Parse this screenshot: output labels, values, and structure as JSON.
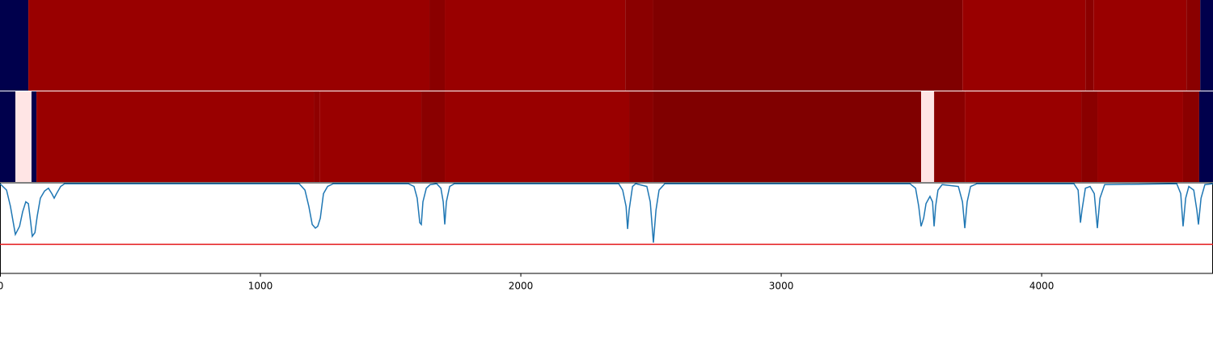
{
  "chart_data": {
    "type": "strips_and_line",
    "xlim": [
      0,
      4658
    ],
    "xticks": [
      0,
      1000,
      2000,
      3000,
      4000
    ],
    "colormap": [
      {
        "value": 0,
        "color": "#00004c"
      },
      {
        "value": 0.25,
        "color": "#0000ff"
      },
      {
        "value": 0.5,
        "color": "#ffffff"
      },
      {
        "value": 0.75,
        "color": "#ff0000"
      },
      {
        "value": 1,
        "color": "#800000"
      }
    ],
    "strips": [
      {
        "segments": [
          {
            "start": 0,
            "end": 109,
            "value": 0
          },
          {
            "start": 109,
            "end": 1649,
            "value": 0.95
          },
          {
            "start": 1649,
            "end": 1708,
            "value": 0.98
          },
          {
            "start": 1708,
            "end": 2401,
            "value": 0.95
          },
          {
            "start": 2401,
            "end": 2509,
            "value": 0.98
          },
          {
            "start": 2509,
            "end": 3696,
            "value": 1
          },
          {
            "start": 3696,
            "end": 4168,
            "value": 0.95
          },
          {
            "start": 4168,
            "end": 4199,
            "value": 0.98
          },
          {
            "start": 4199,
            "end": 4556,
            "value": 0.95
          },
          {
            "start": 4556,
            "end": 4609,
            "value": 0.98
          },
          {
            "start": 4609,
            "end": 4658,
            "value": 0
          }
        ]
      },
      {
        "segments": [
          {
            "start": 0,
            "end": 59,
            "value": 0
          },
          {
            "start": 59,
            "end": 121,
            "value": 0.525
          },
          {
            "start": 121,
            "end": 140,
            "value": 0
          },
          {
            "start": 140,
            "end": 1205,
            "value": 0.95
          },
          {
            "start": 1205,
            "end": 1227,
            "value": 0.97
          },
          {
            "start": 1227,
            "end": 1618,
            "value": 0.95
          },
          {
            "start": 1618,
            "end": 1708,
            "value": 0.98
          },
          {
            "start": 1708,
            "end": 2416,
            "value": 0.95
          },
          {
            "start": 2416,
            "end": 2509,
            "value": 0.98
          },
          {
            "start": 2509,
            "end": 3537,
            "value": 1
          },
          {
            "start": 3537,
            "end": 3587,
            "value": 0.525
          },
          {
            "start": 3587,
            "end": 3705,
            "value": 0.98
          },
          {
            "start": 3705,
            "end": 4152,
            "value": 0.95
          },
          {
            "start": 4152,
            "end": 4214,
            "value": 0.98
          },
          {
            "start": 4214,
            "end": 4543,
            "value": 0.95
          },
          {
            "start": 4543,
            "end": 4605,
            "value": 0.98
          },
          {
            "start": 4605,
            "end": 4658,
            "value": 0
          }
        ]
      }
    ],
    "ylim": [
      0,
      1
    ],
    "threshold": 0.32,
    "threshold_color": "#e41a1c",
    "series": [
      {
        "color": "#1f77b4",
        "x": [
          0,
          25,
          40,
          59,
          75,
          87,
          99,
          109,
          118,
          124,
          134,
          143,
          155,
          171,
          186,
          199,
          208,
          217,
          233,
          248,
          621,
          1149,
          1171,
          1186,
          1199,
          1211,
          1220,
          1230,
          1242,
          1258,
          1280,
          1568,
          1590,
          1602,
          1612,
          1618,
          1624,
          1637,
          1652,
          1677,
          1693,
          1702,
          1708,
          1714,
          1727,
          1745,
          2376,
          2391,
          2404,
          2410,
          2416,
          2429,
          2441,
          2484,
          2497,
          2509,
          2519,
          2531,
          2553,
          3494,
          3516,
          3528,
          3537,
          3547,
          3556,
          3571,
          3581,
          3587,
          3593,
          3602,
          3618,
          3680,
          3696,
          3705,
          3714,
          3727,
          3752,
          4124,
          4140,
          4149,
          4155,
          4168,
          4186,
          4202,
          4214,
          4224,
          4242,
          4519,
          4534,
          4543,
          4553,
          4565,
          4584,
          4596,
          4602,
          4612,
          4627,
          4658
        ],
        "values": [
          0.99,
          0.92,
          0.74,
          0.43,
          0.52,
          0.68,
          0.79,
          0.77,
          0.56,
          0.41,
          0.45,
          0.63,
          0.83,
          0.91,
          0.94,
          0.88,
          0.83,
          0.88,
          0.96,
          0.99,
          0.99,
          0.99,
          0.92,
          0.74,
          0.54,
          0.5,
          0.52,
          0.61,
          0.88,
          0.96,
          0.99,
          0.99,
          0.96,
          0.83,
          0.56,
          0.54,
          0.79,
          0.94,
          0.98,
          0.99,
          0.94,
          0.79,
          0.54,
          0.79,
          0.96,
          0.99,
          0.99,
          0.92,
          0.74,
          0.49,
          0.7,
          0.96,
          0.99,
          0.96,
          0.79,
          0.34,
          0.7,
          0.92,
          0.99,
          0.99,
          0.94,
          0.74,
          0.52,
          0.61,
          0.77,
          0.85,
          0.79,
          0.52,
          0.74,
          0.92,
          0.98,
          0.96,
          0.79,
          0.5,
          0.79,
          0.96,
          0.99,
          0.99,
          0.92,
          0.56,
          0.7,
          0.94,
          0.96,
          0.88,
          0.5,
          0.83,
          0.98,
          0.99,
          0.88,
          0.52,
          0.83,
          0.96,
          0.92,
          0.7,
          0.54,
          0.83,
          0.98,
          0.99
        ]
      }
    ]
  }
}
